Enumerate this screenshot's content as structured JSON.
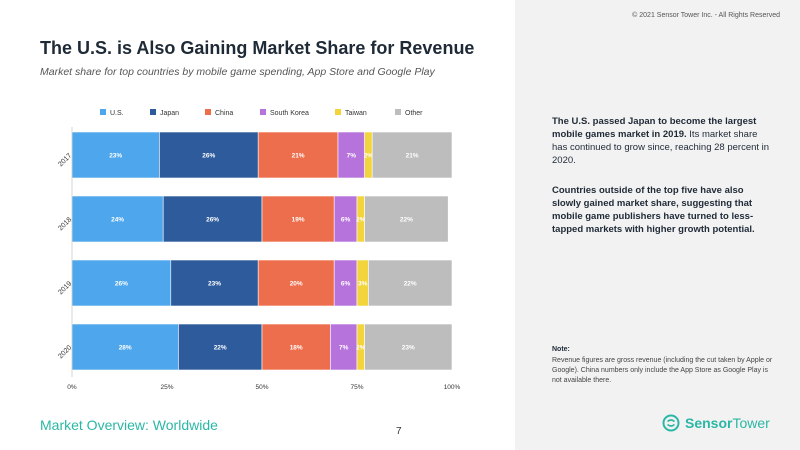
{
  "header": {
    "title": "The U.S. is Also Gaining Market Share for Revenue",
    "subtitle": "Market share for top countries by mobile game spending, App Store and Google Play"
  },
  "sidebar": {
    "copyright": "© 2021 Sensor Tower Inc. - All Rights Reserved",
    "paragraph1_bold": "The U.S. passed Japan to become the largest mobile games market in 2019.",
    "paragraph1_rest": " Its market share has continued to grow since, reaching 28 percent in 2020.",
    "paragraph2": "Countries outside of the top five have also slowly gained market share, suggesting that mobile game publishers have turned to less-tapped markets with higher growth potential.",
    "note_label": "Note:",
    "note_text": "Revenue figures are gross revenue (including the cut taken by Apple or Google). China numbers only include the App Store as Google Play is not available there."
  },
  "footer": {
    "section": "Market Overview: Worldwide",
    "page": "7",
    "logo_bold": "Sensor",
    "logo_thin": "Tower"
  },
  "chart_data": {
    "type": "bar",
    "orientation": "horizontal",
    "stacked": true,
    "categories": [
      "2017",
      "2018",
      "2019",
      "2020"
    ],
    "series": [
      {
        "name": "U.S.",
        "color": "#4ea6ec",
        "values": [
          23,
          24,
          26,
          28
        ]
      },
      {
        "name": "Japan",
        "color": "#2d5b9c",
        "values": [
          26,
          26,
          23,
          22
        ]
      },
      {
        "name": "China",
        "color": "#ec6e4c",
        "values": [
          21,
          19,
          20,
          18
        ]
      },
      {
        "name": "South Korea",
        "color": "#b773dc",
        "values": [
          7,
          6,
          6,
          7
        ]
      },
      {
        "name": "Taiwan",
        "color": "#f2d43c",
        "values": [
          2,
          2,
          3,
          2
        ]
      },
      {
        "name": "Other",
        "color": "#bdbdbd",
        "values": [
          21,
          22,
          22,
          23
        ]
      }
    ],
    "data_labels": [
      [
        "23%",
        "26%",
        "21%",
        "7%",
        "2%",
        "21%"
      ],
      [
        "24%",
        "26%",
        "19%",
        "6%",
        "2%",
        "22%"
      ],
      [
        "26%",
        "23%",
        "20%",
        "6%",
        "3%",
        "22%"
      ],
      [
        "28%",
        "22%",
        "18%",
        "7%",
        "2%",
        "23%"
      ]
    ],
    "xlim": [
      0,
      100
    ],
    "xticks": [
      "0%",
      "25%",
      "50%",
      "75%",
      "100%"
    ],
    "legend_position": "top",
    "grid": false
  }
}
